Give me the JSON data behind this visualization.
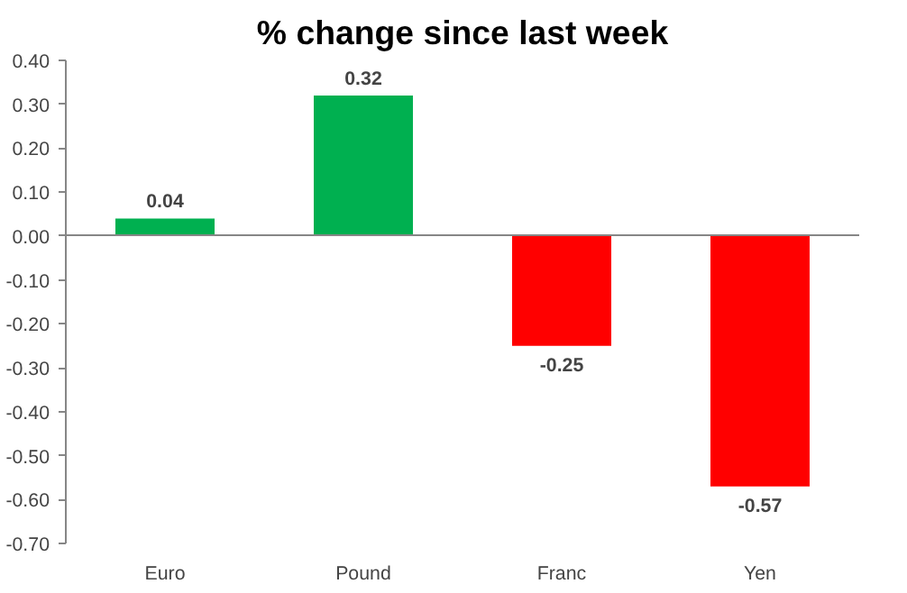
{
  "chart_data": {
    "type": "bar",
    "title": "% change since last week",
    "categories": [
      "Euro",
      "Pound",
      "Franc",
      "Yen"
    ],
    "values": [
      0.04,
      0.32,
      -0.25,
      -0.57
    ],
    "colors": [
      "#00b050",
      "#00b050",
      "#ff0000",
      "#ff0000"
    ],
    "value_labels": [
      "0.04",
      "0.32",
      "-0.25",
      "-0.57"
    ],
    "ylim": [
      -0.7,
      0.4
    ],
    "yticks": [
      {
        "value": 0.4,
        "label": "0.40"
      },
      {
        "value": 0.3,
        "label": "0.30"
      },
      {
        "value": 0.2,
        "label": "0.20"
      },
      {
        "value": 0.1,
        "label": "0.10"
      },
      {
        "value": 0,
        "label": "0.00"
      },
      {
        "value": -0.1,
        "label": "-0.10"
      },
      {
        "value": -0.2,
        "label": "-0.20"
      },
      {
        "value": -0.3,
        "label": "-0.30"
      },
      {
        "value": -0.4,
        "label": "-0.40"
      },
      {
        "value": -0.5,
        "label": "-0.50"
      },
      {
        "value": -0.6,
        "label": "-0.60"
      },
      {
        "value": -0.7,
        "label": "-0.70"
      }
    ]
  }
}
